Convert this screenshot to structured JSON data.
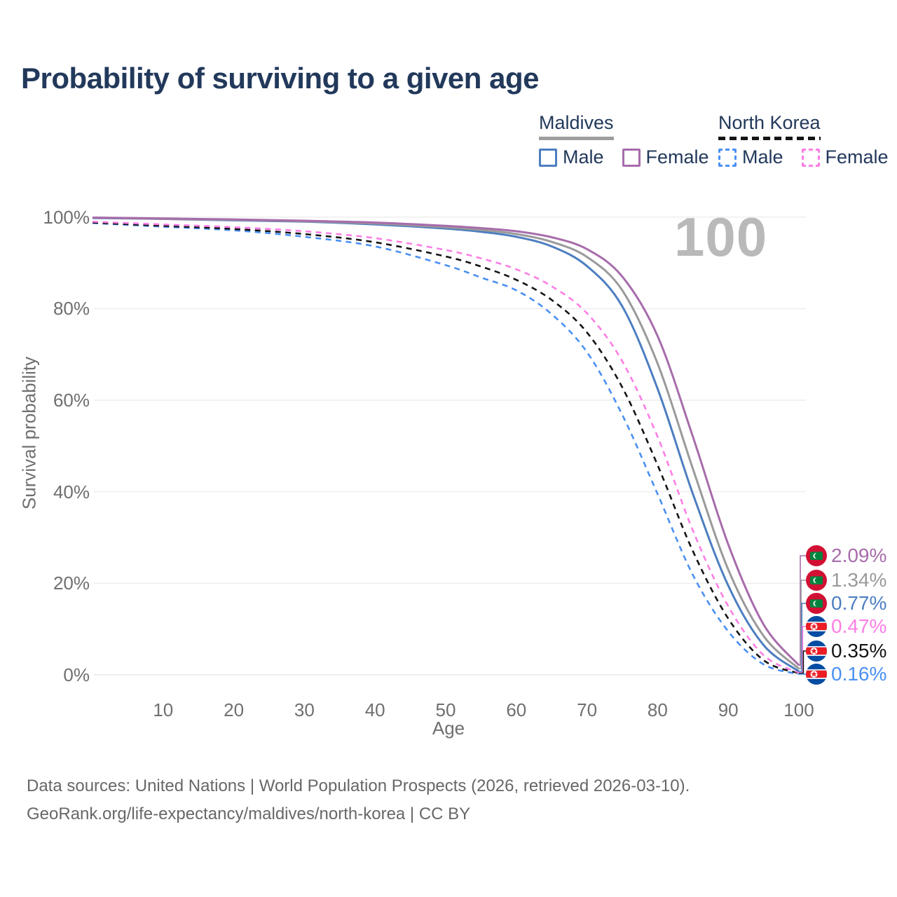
{
  "title": "Probability of surviving to a given age",
  "watermark": "100",
  "legend": {
    "groups": [
      {
        "label": "Maldives",
        "line_style": "solid",
        "line_color": "#9e9e9e",
        "items": [
          {
            "label": "Male",
            "color": "#4d7ec0",
            "style": "solid"
          },
          {
            "label": "Female",
            "color": "#a76cab",
            "style": "solid"
          }
        ]
      },
      {
        "label": "North Korea",
        "line_style": "dashed",
        "line_color": "#141414",
        "items": [
          {
            "label": "Male",
            "color": "#4a90f2",
            "style": "dashed"
          },
          {
            "label": "Female",
            "color": "#fc7ee5",
            "style": "dashed"
          }
        ]
      }
    ]
  },
  "chart_data": {
    "type": "line",
    "title": "Probability of surviving to a given age",
    "xlabel": "Age",
    "ylabel": "Survival probability",
    "xlim": [
      0,
      100
    ],
    "ylim": [
      0,
      100
    ],
    "grid": true,
    "x_ticks": [
      10,
      20,
      30,
      40,
      50,
      60,
      70,
      80,
      90,
      100
    ],
    "y_ticks": [
      {
        "value": 0,
        "label": "0%"
      },
      {
        "value": 20,
        "label": "20%"
      },
      {
        "value": 40,
        "label": "40%"
      },
      {
        "value": 60,
        "label": "60%"
      },
      {
        "value": 80,
        "label": "80%"
      },
      {
        "value": 100,
        "label": "100%"
      }
    ],
    "x": [
      0,
      10,
      20,
      30,
      40,
      50,
      55,
      60,
      65,
      70,
      75,
      80,
      85,
      90,
      95,
      100
    ],
    "series": [
      {
        "name": "Maldives Female",
        "country": "Maldives",
        "sex": "Female",
        "style": "solid",
        "color": "#a76cab",
        "flag": "maldives",
        "end_label": "2.09%",
        "values": [
          99.9,
          99.7,
          99.5,
          99.2,
          98.8,
          98.1,
          97.6,
          96.9,
          95.6,
          93.0,
          87.0,
          74.0,
          52.0,
          28.5,
          11.0,
          2.09
        ]
      },
      {
        "name": "Maldives (both sexes)",
        "country": "Maldives",
        "sex": "All",
        "style": "solid",
        "color": "#9a9a9a",
        "flag": "maldives",
        "end_label": "1.34%",
        "values": [
          99.9,
          99.6,
          99.4,
          99.1,
          98.6,
          97.8,
          97.2,
          96.3,
          94.6,
          91.3,
          84.0,
          68.0,
          45.0,
          23.0,
          8.5,
          1.34
        ]
      },
      {
        "name": "Maldives Male",
        "country": "Maldives",
        "sex": "Male",
        "style": "solid",
        "color": "#4d7ec0",
        "flag": "maldives",
        "end_label": "0.77%",
        "values": [
          99.8,
          99.6,
          99.3,
          99.0,
          98.4,
          97.5,
          96.8,
          95.7,
          93.6,
          89.3,
          80.5,
          62.5,
          39.5,
          19.5,
          6.5,
          0.77
        ]
      },
      {
        "name": "North Korea Female",
        "country": "North Korea",
        "sex": "Female",
        "style": "dashed",
        "color": "#fc7ee5",
        "flag": "north-korea",
        "end_label": "0.47%",
        "values": [
          99.0,
          98.4,
          97.8,
          96.9,
          95.4,
          92.8,
          91.0,
          88.6,
          84.9,
          79.0,
          68.5,
          52.0,
          31.5,
          15.0,
          4.3,
          0.47
        ]
      },
      {
        "name": "North Korea (both sexes)",
        "country": "North Korea",
        "sex": "All",
        "style": "dashed",
        "color": "#141414",
        "flag": "north-korea",
        "end_label": "0.35%",
        "values": [
          98.8,
          98.1,
          97.4,
          96.3,
          94.5,
          91.4,
          89.2,
          86.3,
          81.9,
          74.8,
          62.8,
          45.8,
          27.0,
          12.3,
          3.2,
          0.35
        ]
      },
      {
        "name": "North Korea Male",
        "country": "North Korea",
        "sex": "Male",
        "style": "dashed",
        "color": "#4a90f2",
        "flag": "north-korea",
        "end_label": "0.16%",
        "values": [
          98.7,
          97.9,
          97.1,
          95.7,
          93.6,
          89.5,
          86.8,
          84.0,
          78.8,
          70.5,
          56.8,
          39.5,
          21.8,
          9.5,
          2.3,
          0.16
        ]
      }
    ]
  },
  "footer": {
    "line1": "Data sources: United Nations | World Population Prospects (2026, retrieved 2026-03-10).",
    "line2": "GeoRank.org/life-expectancy/maldives/north-korea | CC BY"
  }
}
